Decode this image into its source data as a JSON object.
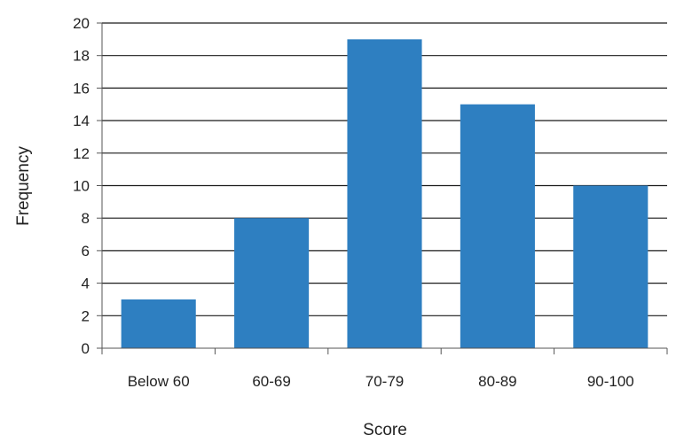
{
  "chart_data": {
    "type": "bar",
    "title": "",
    "xlabel": "Score",
    "ylabel": "Frequency",
    "categories": [
      "Below 60",
      "60-69",
      "70-79",
      "80-89",
      "90-100"
    ],
    "values": [
      3,
      8,
      19,
      15,
      10
    ],
    "ylim": [
      0,
      20
    ],
    "y_ticks": [
      "0",
      "2",
      "4",
      "6",
      "8",
      "10",
      "12",
      "14",
      "16",
      "18",
      "20"
    ],
    "grid": true,
    "legend": "none",
    "bar_color": "#2E7FC1",
    "grid_color": "#1a1a1a"
  }
}
